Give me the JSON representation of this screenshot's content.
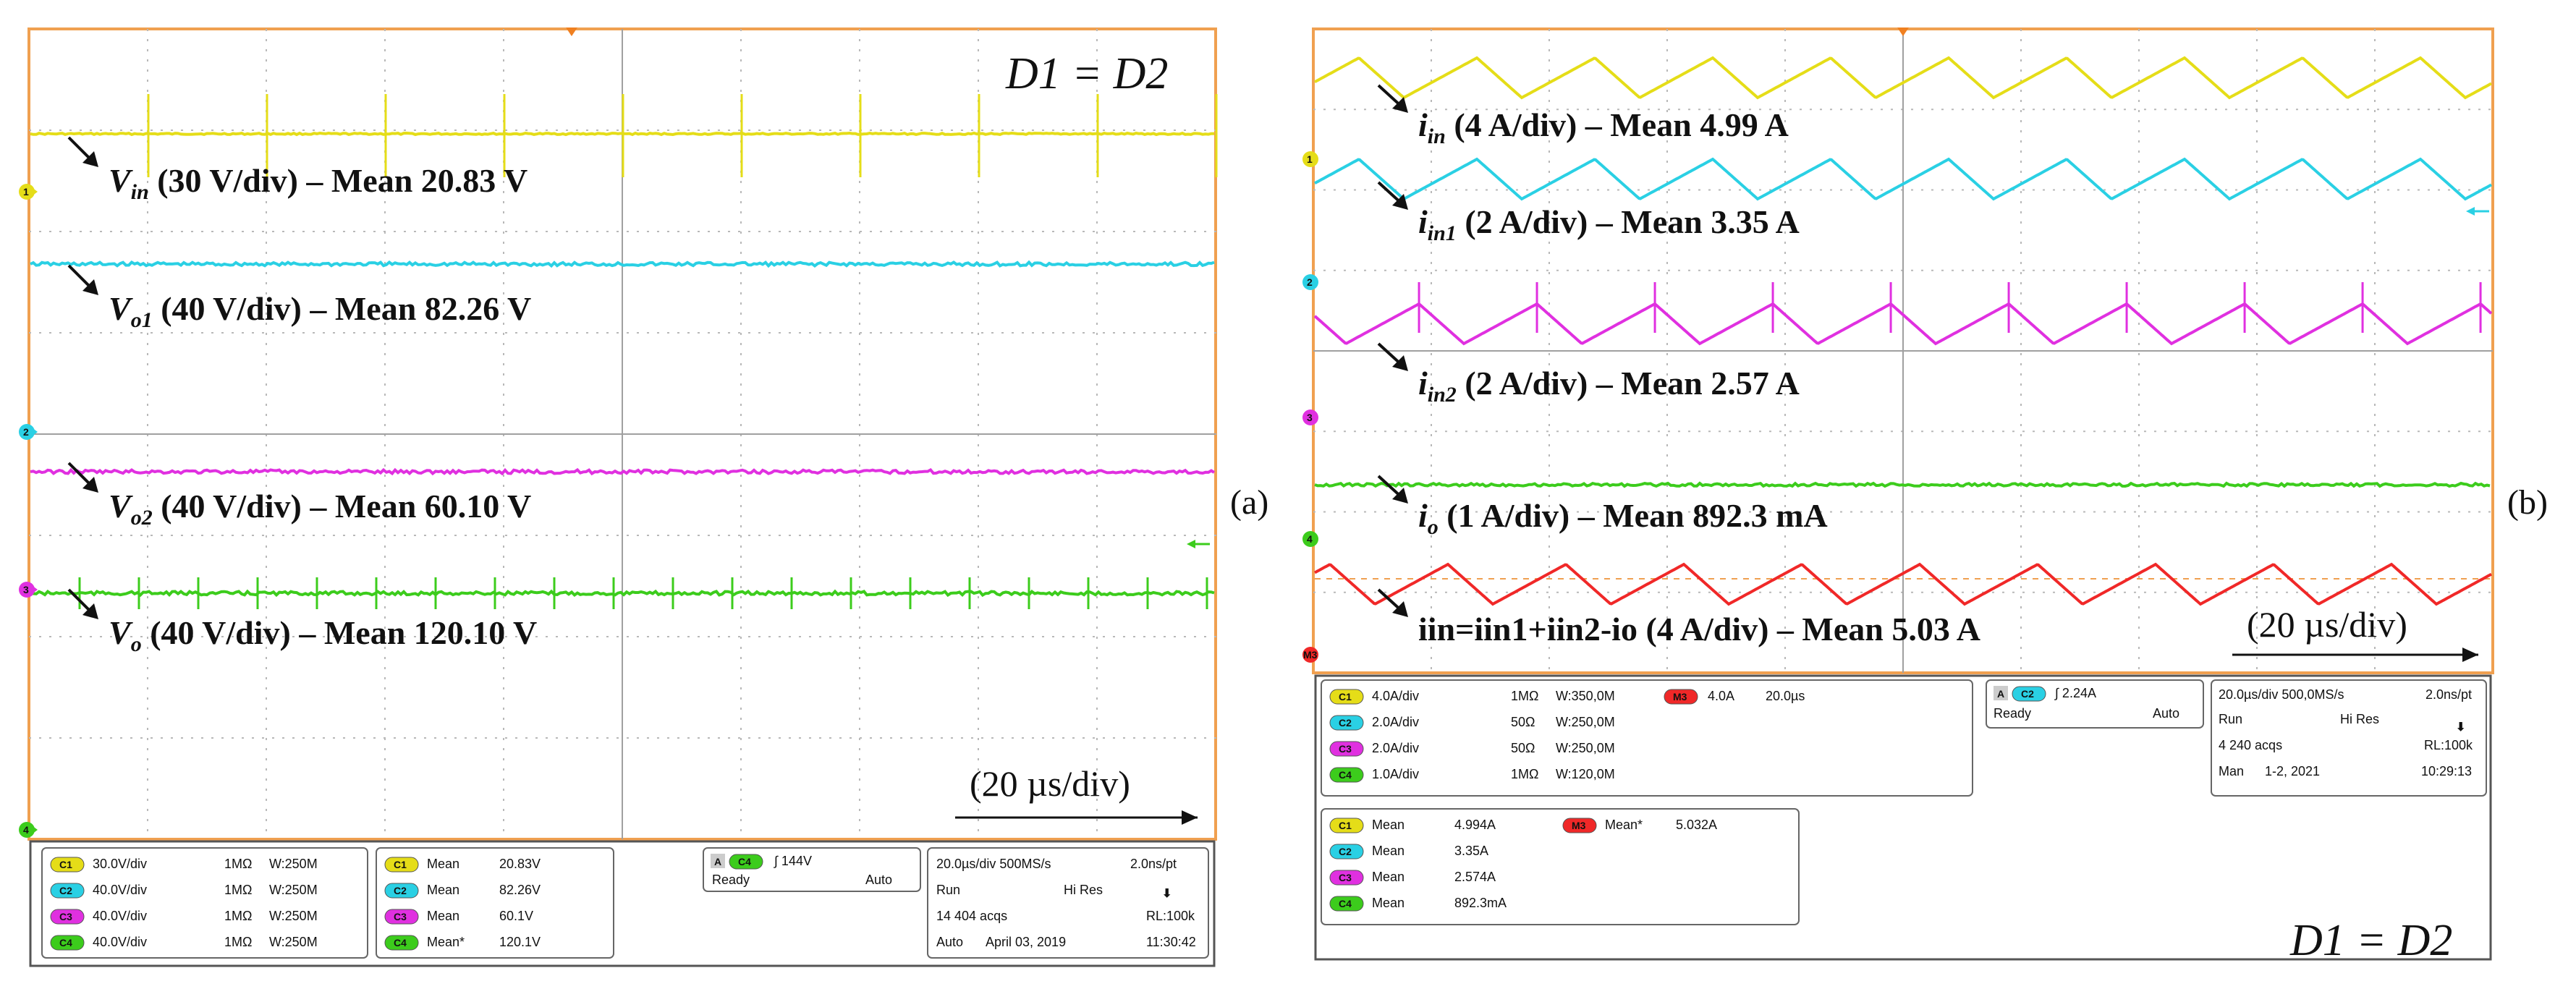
{
  "chart_data": [
    {
      "type": "line",
      "panel_label": "(a)",
      "condition": "D1 = D2",
      "timebase_label": "(20 µs/div)",
      "series": [
        {
          "name": "Vin",
          "color": "#e5dd18",
          "scale": "30 V/div",
          "mean": "20.83 V",
          "marker": "1",
          "label_main": "V",
          "label_sub": "in",
          "label_text": " (30 V/div) – Mean 20.83 V"
        },
        {
          "name": "Vo1",
          "color": "#2ad0e4",
          "scale": "40 V/div",
          "mean": "82.26 V",
          "marker": "2",
          "label_main": "V",
          "label_sub": "o1",
          "label_text": " (40 V/div) – Mean 82.26 V"
        },
        {
          "name": "Vo2",
          "color": "#e030e0",
          "scale": "40 V/div",
          "mean": "60.10 V",
          "marker": "3",
          "label_main": "V",
          "label_sub": "o2",
          "label_text": " (40 V/div) – Mean 60.10 V"
        },
        {
          "name": "Vo",
          "color": "#3ccc1c",
          "scale": "40 V/div",
          "mean": "120.10 V",
          "marker": "4",
          "label_main": "V",
          "label_sub": "o",
          "label_text": " (40 V/div) – Mean 120.10 V"
        }
      ],
      "status": {
        "channels": [
          {
            "ch": "C1",
            "scale": "30.0V/div",
            "imp": "1MΩ",
            "bw": "W:250M",
            "color": "#e5dd18"
          },
          {
            "ch": "C2",
            "scale": "40.0V/div",
            "imp": "1MΩ",
            "bw": "W:250M",
            "color": "#2ad0e4"
          },
          {
            "ch": "C3",
            "scale": "40.0V/div",
            "imp": "1MΩ",
            "bw": "W:250M",
            "color": "#e030e0"
          },
          {
            "ch": "C4",
            "scale": "40.0V/div",
            "imp": "1MΩ",
            "bw": "W:250M",
            "color": "#3ccc1c"
          }
        ],
        "means": [
          {
            "ch": "C1",
            "label": "Mean",
            "value": "20.83V",
            "color": "#e5dd18"
          },
          {
            "ch": "C2",
            "label": "Mean",
            "value": "82.26V",
            "color": "#2ad0e4"
          },
          {
            "ch": "C3",
            "label": "Mean",
            "value": "60.1V",
            "color": "#e030e0"
          },
          {
            "ch": "C4",
            "label": "Mean*",
            "value": "120.1V",
            "color": "#3ccc1c"
          }
        ],
        "trigger": {
          "mode": "A",
          "ch": "C4",
          "level": "144V",
          "state": "Ready",
          "auto": "Auto"
        },
        "acq": {
          "timebase": "20.0µs/div 500MS/s",
          "pt": "2.0ns/pt",
          "run": "Run",
          "res": "Hi Res",
          "acqs": "14 404 acqs",
          "rl": "RL:100k",
          "mode": "Auto",
          "date": "April 03, 2019",
          "time": "11:30:42"
        }
      }
    },
    {
      "type": "line",
      "panel_label": "(b)",
      "condition": "D1 = D2",
      "timebase_label": "(20 µs/div)",
      "series": [
        {
          "name": "iin",
          "color": "#e5dd18",
          "scale": "4 A/div",
          "mean": "4.99 A",
          "marker": "1",
          "label_main": "i",
          "label_sub": "in",
          "label_text": " (4 A/div) – Mean 4.99 A"
        },
        {
          "name": "iin1",
          "color": "#2ad0e4",
          "scale": "2 A/div",
          "mean": "3.35 A",
          "marker": "2",
          "label_main": "i",
          "label_sub": "in1",
          "label_text": " (2 A/div) – Mean 3.35 A"
        },
        {
          "name": "iin2",
          "color": "#e030e0",
          "scale": "2 A/div",
          "mean": "2.57 A",
          "marker": "3",
          "label_main": "i",
          "label_sub": "in2",
          "label_text": " (2 A/div) – Mean 2.57 A"
        },
        {
          "name": "io",
          "color": "#3ccc1c",
          "scale": "1 A/div",
          "mean": "892.3 mA",
          "marker": "4",
          "label_main": "i",
          "label_sub": "o",
          "label_text": " (1 A/div) – Mean 892.3 mA"
        },
        {
          "name": "M3",
          "color": "#f02828",
          "scale": "4 A/div",
          "mean": "5.03 A",
          "marker": "M3",
          "label_text": "iin=iin1+iin2-io (4 A/div) – Mean 5.03 A"
        }
      ],
      "status": {
        "channels": [
          {
            "ch": "C1",
            "scale": "4.0A/div",
            "imp": "1MΩ",
            "bw": "W:350,0M",
            "color": "#e5dd18"
          },
          {
            "ch": "C2",
            "scale": "2.0A/div",
            "imp": "50Ω",
            "bw": "W:250,0M",
            "color": "#2ad0e4"
          },
          {
            "ch": "C3",
            "scale": "2.0A/div",
            "imp": "50Ω",
            "bw": "W:250,0M",
            "color": "#e030e0"
          },
          {
            "ch": "C4",
            "scale": "1.0A/div",
            "imp": "1MΩ",
            "bw": "W:120,0M",
            "color": "#3ccc1c"
          }
        ],
        "math": {
          "ch": "M3",
          "scale": "4.0A",
          "time": "20.0µs",
          "color": "#f02828"
        },
        "means": [
          {
            "ch": "C1",
            "label": "Mean",
            "value": "4.994A",
            "color": "#e5dd18"
          },
          {
            "ch": "C2",
            "label": "Mean",
            "value": "3.35A",
            "color": "#2ad0e4"
          },
          {
            "ch": "C3",
            "label": "Mean",
            "value": "2.574A",
            "color": "#e030e0"
          },
          {
            "ch": "C4",
            "label": "Mean",
            "value": "892.3mA",
            "color": "#3ccc1c"
          }
        ],
        "math_mean": {
          "ch": "M3",
          "label": "Mean*",
          "value": "5.032A",
          "color": "#f02828"
        },
        "trigger": {
          "mode": "A",
          "ch": "C2",
          "level": "2.24A",
          "state": "Ready",
          "auto": "Auto"
        },
        "acq": {
          "timebase": "20.0µs/div 500,0MS/s",
          "pt": "2.0ns/pt",
          "run": "Run",
          "res": "Hi Res",
          "acqs": "4 240 acqs",
          "rl": "RL:100k",
          "mode": "Man",
          "date": "1-2, 2021",
          "time": "10:29:13"
        }
      }
    }
  ]
}
